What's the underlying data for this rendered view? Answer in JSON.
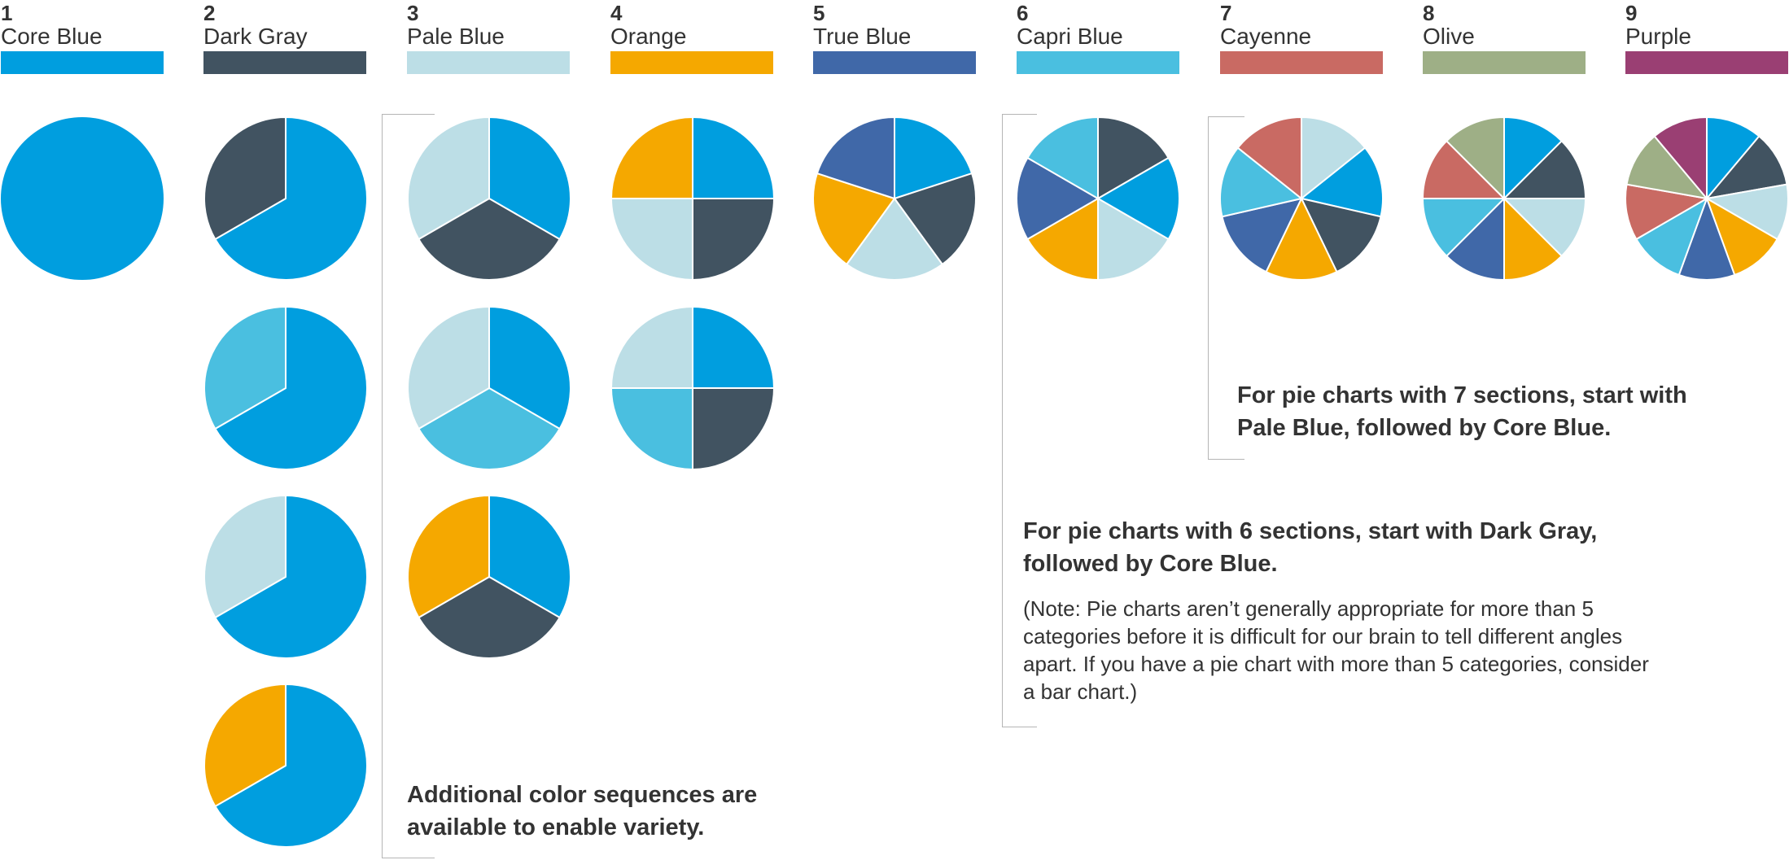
{
  "palette": [
    {
      "num": "1",
      "name": "Core Blue",
      "color": "#009EDF"
    },
    {
      "num": "2",
      "name": "Dark Gray",
      "color": "#415361"
    },
    {
      "num": "3",
      "name": "Pale Blue",
      "color": "#BCDEE6"
    },
    {
      "num": "4",
      "name": "Orange",
      "color": "#F5A800"
    },
    {
      "num": "5",
      "name": "True Blue",
      "color": "#4068A8"
    },
    {
      "num": "6",
      "name": "Capri Blue",
      "color": "#4ABFE0"
    },
    {
      "num": "7",
      "name": "Cayenne",
      "color": "#C96A63"
    },
    {
      "num": "8",
      "name": "Olive",
      "color": "#9EAF86"
    },
    {
      "num": "9",
      "name": "Purple",
      "color": "#9A3F73"
    }
  ],
  "notes": {
    "additional": "Additional color sequences are available to enable variety.",
    "six_sections": "For pie charts with 6 sections, start with Dark Gray, followed by Core Blue.",
    "six_sections_note": "(Note: Pie charts aren’t generally appropriate for more than 5 categories before it is difficult for our brain to tell different angles apart. If you have a pie chart with more than 5 categories, consider a bar chart.)",
    "seven_sections": "For pie charts with 7 sections, start with Pale Blue, followed by Core Blue."
  },
  "chart_data": [
    {
      "type": "pie",
      "group": "1",
      "slices": [
        "Core Blue"
      ],
      "values": [
        1
      ]
    },
    {
      "type": "pie",
      "group": "2",
      "slices": [
        "Core Blue",
        "Dark Gray"
      ],
      "values": [
        2,
        1
      ]
    },
    {
      "type": "pie",
      "group": "2",
      "slices": [
        "Core Blue",
        "Capri Blue"
      ],
      "values": [
        2,
        1
      ]
    },
    {
      "type": "pie",
      "group": "2",
      "slices": [
        "Core Blue",
        "Pale Blue"
      ],
      "values": [
        2,
        1
      ]
    },
    {
      "type": "pie",
      "group": "2",
      "slices": [
        "Core Blue",
        "Orange"
      ],
      "values": [
        2,
        1
      ]
    },
    {
      "type": "pie",
      "group": "3",
      "slices": [
        "Core Blue",
        "Dark Gray",
        "Pale Blue"
      ],
      "values": [
        1,
        1,
        1
      ]
    },
    {
      "type": "pie",
      "group": "3",
      "slices": [
        "Core Blue",
        "Capri Blue",
        "Pale Blue"
      ],
      "values": [
        1,
        1,
        1
      ]
    },
    {
      "type": "pie",
      "group": "3",
      "slices": [
        "Core Blue",
        "Dark Gray",
        "Orange"
      ],
      "values": [
        1,
        1,
        1
      ]
    },
    {
      "type": "pie",
      "group": "4",
      "slices": [
        "Core Blue",
        "Dark Gray",
        "Pale Blue",
        "Orange"
      ],
      "values": [
        1,
        1,
        1,
        1
      ]
    },
    {
      "type": "pie",
      "group": "4",
      "slices": [
        "Core Blue",
        "Dark Gray",
        "Capri Blue",
        "Pale Blue"
      ],
      "values": [
        1,
        1,
        1,
        1
      ]
    },
    {
      "type": "pie",
      "group": "5",
      "slices": [
        "Core Blue",
        "Dark Gray",
        "Pale Blue",
        "Orange",
        "True Blue"
      ],
      "values": [
        1,
        1,
        1,
        1,
        1
      ]
    },
    {
      "type": "pie",
      "group": "6",
      "slices": [
        "Dark Gray",
        "Core Blue",
        "Pale Blue",
        "Orange",
        "True Blue",
        "Capri Blue"
      ],
      "values": [
        1,
        1,
        1,
        1,
        1,
        1
      ]
    },
    {
      "type": "pie",
      "group": "7",
      "slices": [
        "Pale Blue",
        "Core Blue",
        "Dark Gray",
        "Orange",
        "True Blue",
        "Capri Blue",
        "Cayenne"
      ],
      "values": [
        1,
        1,
        1,
        1,
        1,
        1,
        1
      ]
    },
    {
      "type": "pie",
      "group": "8",
      "slices": [
        "Core Blue",
        "Dark Gray",
        "Pale Blue",
        "Orange",
        "True Blue",
        "Capri Blue",
        "Cayenne",
        "Olive"
      ],
      "values": [
        1,
        1,
        1,
        1,
        1,
        1,
        1,
        1
      ]
    },
    {
      "type": "pie",
      "group": "9",
      "slices": [
        "Core Blue",
        "Dark Gray",
        "Pale Blue",
        "Orange",
        "True Blue",
        "Capri Blue",
        "Cayenne",
        "Olive",
        "Purple"
      ],
      "values": [
        1,
        1,
        1,
        1,
        1,
        1,
        1,
        1,
        1
      ]
    }
  ]
}
